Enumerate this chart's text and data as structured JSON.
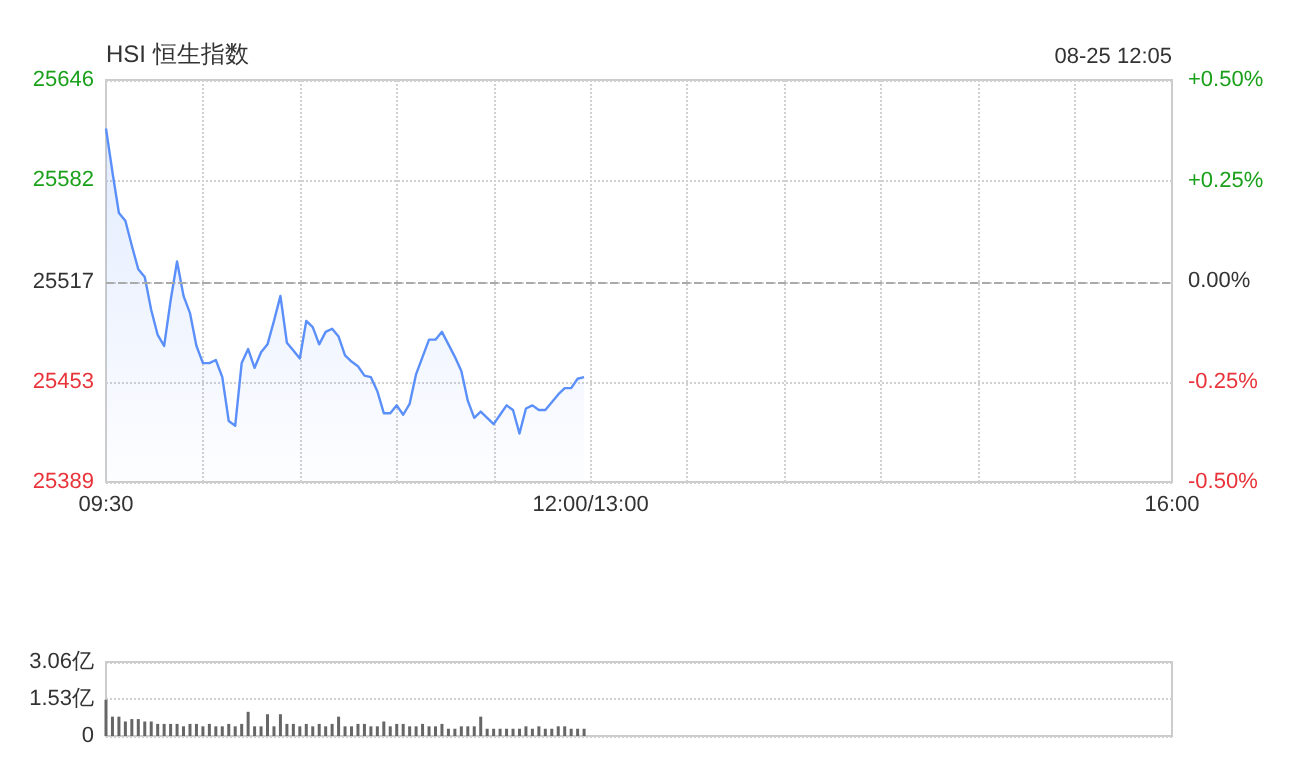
{
  "chart_data": [
    {
      "type": "area",
      "title": "HSI 恒生指数",
      "annotations": [
        "08-25 12:05"
      ],
      "categories": [
        "09:30",
        null,
        null,
        null,
        null,
        null,
        null,
        null,
        null,
        null,
        null,
        null,
        null,
        null,
        null,
        null,
        null,
        null,
        null,
        null,
        null,
        null,
        null,
        null,
        null,
        null,
        null,
        null,
        null,
        null,
        null,
        null,
        null,
        null,
        null,
        null,
        null,
        null,
        null,
        null,
        null,
        null,
        null,
        null,
        null,
        null,
        null,
        null,
        null,
        null,
        null,
        null,
        null,
        null,
        null,
        null,
        null,
        null,
        null,
        null,
        null,
        null,
        null,
        null,
        null,
        null,
        null,
        null,
        null,
        null,
        null,
        null,
        null,
        null,
        null,
        "12:00/13:00",
        null,
        null,
        null,
        null,
        null,
        null,
        null,
        null,
        null,
        null,
        null,
        null,
        null,
        null,
        null,
        null,
        null,
        null,
        null,
        null,
        null,
        null,
        null,
        null,
        null,
        null,
        null,
        null,
        null,
        null,
        null,
        null,
        null,
        null,
        null,
        null,
        null,
        null,
        null,
        null,
        null,
        null,
        null,
        null,
        null,
        null,
        null,
        null,
        null,
        null,
        null,
        null,
        null,
        null,
        null,
        null,
        null,
        null,
        null,
        null,
        null,
        null,
        null,
        null,
        null,
        null,
        null,
        null,
        null,
        null,
        null,
        null,
        null,
        null,
        null,
        null,
        null,
        null,
        null,
        null,
        null,
        null,
        null,
        null,
        null,
        null,
        null,
        null,
        null,
        "16:00"
      ],
      "ylim": [
        25389,
        25646
      ],
      "yticks": [
        25389,
        25453,
        25517,
        25582,
        25646
      ],
      "y2lim": [
        -0.5,
        0.5
      ],
      "y2ticks": [
        {
          "value": -0.5,
          "label": "-0.50%"
        },
        {
          "value": -0.25,
          "label": "-0.25%"
        },
        {
          "value": 0,
          "label": "0.00%"
        },
        {
          "value": 0.25,
          "label": "+0.25%"
        },
        {
          "value": 0.5,
          "label": "+0.50%"
        }
      ],
      "grid": true,
      "ref_lines": [
        {
          "axis": "y",
          "value": 25517,
          "label": null,
          "color": "#aaaaaa",
          "line_style": "dashed"
        }
      ],
      "series": [
        {
          "color": "#5b8ff9",
          "values": [
            25615,
            25587,
            25561,
            25556,
            25540,
            25525,
            25520,
            25499,
            25483,
            25476,
            25505,
            25530,
            25508,
            25497,
            25476,
            25465,
            25465,
            25467,
            25456,
            25428,
            25425,
            25465,
            25474,
            25462,
            25472,
            25477,
            25492,
            25508,
            25478,
            25473,
            25468,
            25492,
            25488,
            25477,
            25485,
            25487,
            25482,
            25470,
            25466,
            25463,
            25457,
            25456,
            25447,
            25433,
            25433,
            25438,
            25432,
            25439,
            25458,
            25469,
            25480,
            25480,
            25485,
            25477,
            25469,
            25460,
            25441,
            25430,
            25434,
            25430,
            25426,
            25432,
            25438,
            25435,
            25420,
            25436,
            25438,
            25435,
            25435,
            25440,
            25445,
            25449,
            25449,
            25455,
            25456,
            null,
            null,
            null,
            null,
            null,
            null,
            null,
            null,
            null,
            null,
            null,
            null,
            null,
            null,
            null,
            null,
            null,
            null,
            null,
            null,
            null,
            null,
            null,
            null,
            null,
            null,
            null,
            null,
            null,
            null,
            null,
            null,
            null,
            null,
            null,
            null,
            null,
            null,
            null,
            null,
            null,
            null,
            null,
            null,
            null,
            null,
            null,
            null,
            null,
            null,
            null,
            null,
            null,
            null,
            null,
            null,
            null,
            null,
            null,
            null,
            null,
            null,
            null,
            null,
            null,
            null,
            null,
            null,
            null,
            null,
            null,
            null,
            null,
            null,
            null,
            null,
            null,
            null,
            null,
            null,
            null,
            null,
            null,
            null,
            null,
            null,
            null,
            null,
            null,
            null,
            null
          ]
        }
      ]
    },
    {
      "type": "bar",
      "tick_labels": "y",
      "grid": "y",
      "categories": [
        null,
        null,
        null,
        null,
        null,
        null,
        null,
        null,
        null,
        null,
        null,
        null,
        null,
        null,
        null,
        null,
        null,
        null,
        null,
        null,
        null,
        null,
        null,
        null,
        null,
        null,
        null,
        null,
        null,
        null,
        null,
        null,
        null,
        null,
        null,
        null,
        null,
        null,
        null,
        null,
        null,
        null,
        null,
        null,
        null,
        null,
        null,
        null,
        null,
        null,
        null,
        null,
        null,
        null,
        null,
        null,
        null,
        null,
        null,
        null,
        null,
        null,
        null,
        null,
        null,
        null,
        null,
        null,
        null,
        null,
        null,
        null,
        null,
        null,
        null,
        null,
        null,
        null,
        null,
        null,
        null,
        null,
        null,
        null,
        null,
        null,
        null,
        null,
        null,
        null,
        null,
        null,
        null,
        null,
        null,
        null,
        null,
        null,
        null,
        null,
        null,
        null,
        null,
        null,
        null,
        null,
        null,
        null,
        null,
        null,
        null,
        null,
        null,
        null,
        null,
        null,
        null,
        null,
        null,
        null,
        null,
        null,
        null,
        null,
        null,
        null,
        null,
        null,
        null,
        null,
        null,
        null,
        null,
        null,
        null,
        null,
        null,
        null,
        null,
        null,
        null,
        null,
        null,
        null,
        null,
        null,
        null,
        null,
        null,
        null,
        null,
        null,
        null,
        null,
        null,
        null,
        null,
        null,
        null,
        null,
        null,
        null,
        null,
        null,
        null,
        null
      ],
      "ylim": [
        0,
        3.06
      ],
      "yticks": [
        0,
        {
          "value": 1.53,
          "label": "1.53亿"
        },
        {
          "value": 3.06,
          "label": "3.06亿"
        }
      ],
      "series": [
        {
          "color": "#666666",
          "values": [
            1.5,
            0.8,
            0.8,
            0.6,
            0.7,
            0.7,
            0.6,
            0.6,
            0.5,
            0.5,
            0.5,
            0.5,
            0.4,
            0.5,
            0.5,
            0.4,
            0.5,
            0.4,
            0.4,
            0.5,
            0.4,
            0.5,
            1.0,
            0.4,
            0.4,
            0.9,
            0.4,
            0.9,
            0.5,
            0.5,
            0.4,
            0.5,
            0.4,
            0.5,
            0.4,
            0.5,
            0.8,
            0.4,
            0.4,
            0.5,
            0.5,
            0.4,
            0.4,
            0.6,
            0.4,
            0.5,
            0.5,
            0.4,
            0.4,
            0.5,
            0.4,
            0.4,
            0.5,
            0.3,
            0.3,
            0.4,
            0.4,
            0.4,
            0.8,
            0.3,
            0.3,
            0.3,
            0.3,
            0.3,
            0.3,
            0.4,
            0.3,
            0.4,
            0.3,
            0.3,
            0.4,
            0.4,
            0.3,
            0.3,
            0.3,
            null,
            null,
            null,
            null,
            null,
            null,
            null,
            null,
            null,
            null,
            null,
            null,
            null,
            null,
            null,
            null,
            null,
            null,
            null,
            null,
            null,
            null,
            null,
            null,
            null,
            null,
            null,
            null,
            null,
            null,
            null,
            null,
            null,
            null,
            null,
            null,
            null,
            null,
            null,
            null,
            null,
            null,
            null,
            null,
            null,
            null,
            null,
            null,
            null,
            null,
            null,
            null,
            null,
            null,
            null,
            null,
            null,
            null,
            null,
            null,
            null,
            null,
            null,
            null,
            null,
            null,
            null,
            null,
            null,
            null,
            null,
            null,
            null,
            null,
            null,
            null,
            null,
            null,
            null,
            null,
            null,
            null,
            null,
            null,
            null,
            null,
            null,
            null,
            null,
            null,
            null
          ]
        }
      ]
    }
  ]
}
